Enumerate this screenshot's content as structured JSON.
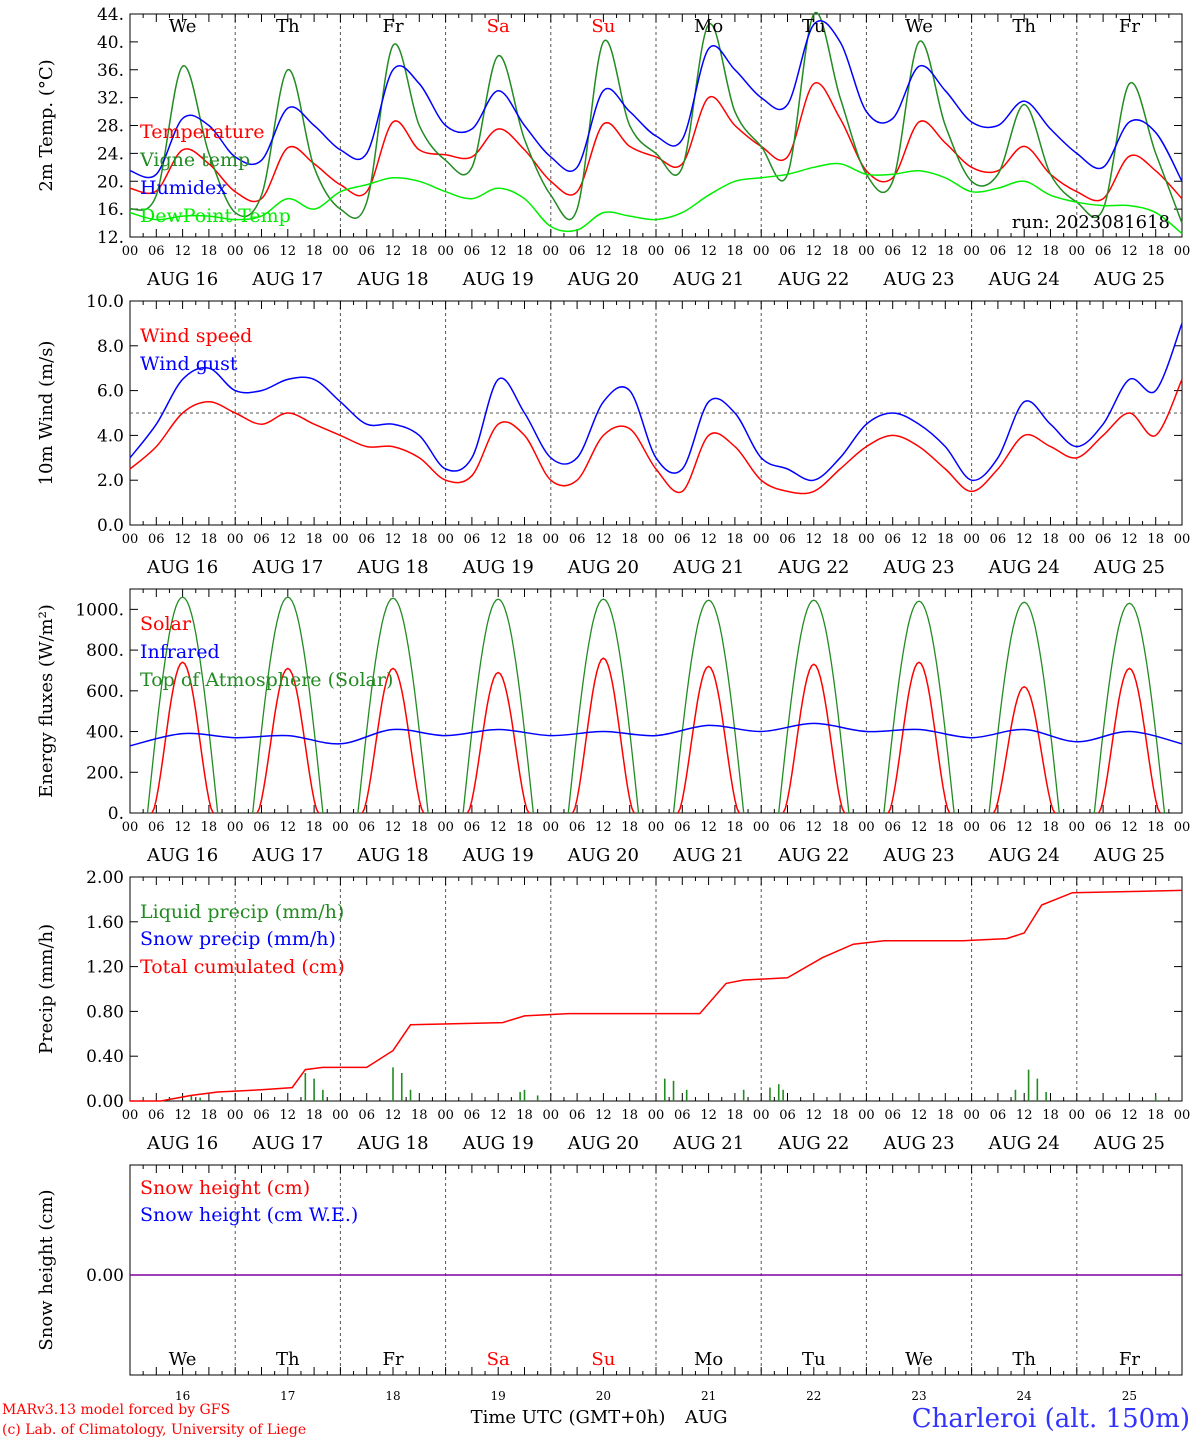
{
  "chart_data": [
    {
      "type": "line",
      "ylabel": "2m Temp. (°C)",
      "ylim": [
        12,
        44
      ],
      "yticks": [
        12,
        16,
        20,
        24,
        28,
        32,
        36,
        40,
        44
      ],
      "ytick_labels": [
        "12.",
        "16.",
        "20.",
        "24.",
        "28.",
        "32.",
        "36.",
        "40.",
        "44."
      ],
      "annotation": "run: 2023081618",
      "weekday_labels": [
        {
          "text": "We",
          "color": "#000000"
        },
        {
          "text": "Th",
          "color": "#000000"
        },
        {
          "text": "Fr",
          "color": "#000000"
        },
        {
          "text": "Sa",
          "color": "#ff0000"
        },
        {
          "text": "Su",
          "color": "#ff0000"
        },
        {
          "text": "Mo",
          "color": "#000000"
        },
        {
          "text": "Tu",
          "color": "#000000"
        },
        {
          "text": "We",
          "color": "#000000"
        },
        {
          "text": "Th",
          "color": "#000000"
        },
        {
          "text": "Fr",
          "color": "#000000"
        }
      ],
      "x_hours": [
        0,
        6,
        12,
        18,
        24,
        30,
        36,
        42,
        48,
        54,
        60,
        66,
        72,
        78,
        84,
        90,
        96,
        102,
        108,
        114,
        120,
        126,
        132,
        138,
        144,
        150,
        156,
        162,
        168,
        174,
        180,
        186,
        192,
        198,
        204,
        210,
        216,
        222,
        228,
        234,
        240
      ],
      "series": [
        {
          "name": "Temperature",
          "color": "#ff0000",
          "values": [
            19,
            18.6,
            24.5,
            22.5,
            18.5,
            17.5,
            24.8,
            22.5,
            19.5,
            18.5,
            28.5,
            24.5,
            23.8,
            23.5,
            27.5,
            24.5,
            20,
            18.5,
            28.2,
            25,
            23.5,
            22.5,
            32,
            28,
            25,
            23.5,
            34,
            29,
            21.5,
            20.5,
            28.5,
            25.5,
            22,
            21.5,
            25,
            21,
            18.5,
            17.5,
            23.6,
            21.5,
            17.5
          ]
        },
        {
          "name": "Vigne temp",
          "color": "#228b22",
          "values": [
            16,
            18,
            36.5,
            24,
            15.5,
            18,
            36,
            22,
            16,
            17,
            39.5,
            28,
            23,
            22,
            38,
            26,
            18,
            16,
            40,
            28,
            24,
            22,
            42.5,
            30,
            25,
            21,
            44,
            32,
            21,
            20,
            40,
            28,
            20,
            21,
            31,
            21,
            17,
            16,
            34,
            24,
            14
          ]
        },
        {
          "name": "Humidex",
          "color": "#0000ff",
          "values": [
            21.5,
            21,
            29,
            28,
            23.5,
            23,
            30.5,
            28,
            24.5,
            24,
            36,
            34,
            28,
            27.5,
            33,
            28,
            23.5,
            22,
            33,
            30,
            26.5,
            26,
            39,
            36,
            32,
            31,
            42.5,
            40,
            30,
            29,
            36.5,
            33,
            28.5,
            28,
            31.5,
            27.5,
            24,
            22,
            28.5,
            27,
            20
          ]
        },
        {
          "name": "DewPoint Temp",
          "color": "#00ee00",
          "values": [
            15.5,
            14.5,
            15,
            15,
            14.5,
            15,
            17.5,
            16,
            18.5,
            19.5,
            20.5,
            20,
            18.5,
            17.5,
            19,
            17.5,
            13.5,
            13,
            15.5,
            15,
            14.5,
            15.5,
            18,
            20,
            20.5,
            21,
            22,
            22.5,
            21,
            21,
            21.5,
            20.5,
            18.5,
            19,
            20,
            18,
            17,
            16.5,
            16.5,
            15.5,
            12.5
          ]
        }
      ]
    },
    {
      "type": "line",
      "ylabel": "10m Wind (m/s)",
      "ylim": [
        0,
        10
      ],
      "yticks": [
        0,
        2,
        4,
        6,
        8,
        10
      ],
      "ytick_labels": [
        "0.0",
        "2.0",
        "4.0",
        "6.0",
        "8.0",
        "10.0"
      ],
      "reference_line": 5,
      "x_hours": [
        0,
        6,
        12,
        18,
        24,
        30,
        36,
        42,
        48,
        54,
        60,
        66,
        72,
        78,
        84,
        90,
        96,
        102,
        108,
        114,
        120,
        126,
        132,
        138,
        144,
        150,
        156,
        162,
        168,
        174,
        180,
        186,
        192,
        198,
        204,
        210,
        216,
        222,
        228,
        234,
        240
      ],
      "series": [
        {
          "name": "Wind speed",
          "color": "#ff0000",
          "values": [
            2.5,
            3.5,
            5,
            5.5,
            5,
            4.5,
            5,
            4.5,
            4,
            3.5,
            3.5,
            3,
            2,
            2.2,
            4.5,
            4,
            2,
            2,
            4,
            4.3,
            2.5,
            1.5,
            4,
            3.5,
            2,
            1.5,
            1.5,
            2.5,
            3.5,
            4,
            3.5,
            2.5,
            1.5,
            2.5,
            4,
            3.5,
            3,
            4,
            5,
            4,
            6.5
          ]
        },
        {
          "name": "Wind gust",
          "color": "#0000ff",
          "values": [
            3,
            4.5,
            6.5,
            7,
            6,
            6,
            6.5,
            6.5,
            5.5,
            4.5,
            4.5,
            4,
            2.5,
            3,
            6.5,
            5,
            3,
            3,
            5.5,
            6,
            3,
            2.5,
            5.5,
            5,
            3,
            2.5,
            2,
            3,
            4.5,
            5,
            4.5,
            3.5,
            2,
            3,
            5.5,
            4.5,
            3.5,
            4.5,
            6.5,
            6,
            9
          ]
        }
      ]
    },
    {
      "type": "line",
      "ylabel": "Energy fluxes (W/m²)",
      "ylim": [
        0,
        1100
      ],
      "yticks": [
        0,
        200,
        400,
        600,
        800,
        1000
      ],
      "ytick_labels": [
        "0.",
        "200.",
        "400.",
        "600.",
        "800.",
        "1000."
      ],
      "series": [
        {
          "name": "Solar",
          "color": "#ff0000",
          "daily_peak": [
            740,
            710,
            710,
            690,
            760,
            720,
            730,
            740,
            620,
            710
          ]
        },
        {
          "name": "Infrared",
          "color": "#0000ff",
          "x_hours": [
            0,
            12,
            24,
            36,
            48,
            60,
            72,
            84,
            96,
            108,
            120,
            132,
            144,
            156,
            168,
            180,
            192,
            204,
            216,
            228,
            240
          ],
          "values": [
            330,
            390,
            370,
            380,
            340,
            410,
            380,
            410,
            380,
            400,
            380,
            430,
            400,
            440,
            400,
            410,
            370,
            410,
            350,
            400,
            340
          ]
        },
        {
          "name": "Top of Atmosphere (Solar)",
          "color": "#228b22",
          "daily_peak": [
            1060,
            1060,
            1055,
            1050,
            1050,
            1045,
            1045,
            1040,
            1035,
            1030
          ]
        }
      ]
    },
    {
      "type": "line",
      "ylabel": "Precip (mm/h)",
      "ylim": [
        0,
        2
      ],
      "yticks": [
        0,
        0.4,
        0.8,
        1.2,
        1.6,
        2.0
      ],
      "ytick_labels": [
        "0.00",
        "0.40",
        "0.80",
        "1.20",
        "1.60",
        "2.00"
      ],
      "series": [
        {
          "name": "Liquid precip (mm/h)",
          "color": "#228b22",
          "x_hours": [
            9,
            14,
            16,
            40,
            42,
            44,
            60,
            62,
            64,
            89,
            90,
            93,
            122,
            124,
            127,
            140,
            146,
            148,
            149,
            202,
            205,
            207,
            209,
            234
          ],
          "values": [
            0.03,
            0.05,
            0.03,
            0.25,
            0.2,
            0.1,
            0.3,
            0.25,
            0.1,
            0.08,
            0.1,
            0.05,
            0.2,
            0.18,
            0.1,
            0.1,
            0.12,
            0.15,
            0.1,
            0.1,
            0.28,
            0.2,
            0.08,
            0.04
          ]
        },
        {
          "name": "Snow precip (mm/h)",
          "color": "#0000ff",
          "values": []
        },
        {
          "name": "Total cumulated (cm)",
          "color": "#ff0000",
          "x_hours": [
            0,
            7,
            14,
            20,
            30,
            37,
            40,
            44,
            54,
            60,
            64,
            85,
            90,
            100,
            120,
            130,
            136,
            140,
            150,
            158,
            165,
            172,
            190,
            200,
            204,
            208,
            215,
            240
          ],
          "values": [
            0,
            0,
            0.05,
            0.08,
            0.1,
            0.12,
            0.28,
            0.3,
            0.3,
            0.45,
            0.68,
            0.7,
            0.76,
            0.78,
            0.78,
            0.78,
            1.05,
            1.08,
            1.1,
            1.28,
            1.4,
            1.43,
            1.43,
            1.45,
            1.5,
            1.75,
            1.86,
            1.88
          ]
        }
      ]
    },
    {
      "type": "line",
      "ylabel": "Snow height (cm)",
      "ytick_labels": [
        "0.00"
      ],
      "series": [
        {
          "name": "Snow height (cm)",
          "color": "#ff0000",
          "values": [
            0,
            0
          ]
        },
        {
          "name": "Snow height (cm W.E.)",
          "color": "#0000ff",
          "values": [
            0,
            0
          ]
        }
      ],
      "weekday_labels": [
        {
          "text": "We",
          "color": "#000000"
        },
        {
          "text": "Th",
          "color": "#000000"
        },
        {
          "text": "Fr",
          "color": "#000000"
        },
        {
          "text": "Sa",
          "color": "#ff0000"
        },
        {
          "text": "Su",
          "color": "#ff0000"
        },
        {
          "text": "Mo",
          "color": "#000000"
        },
        {
          "text": "Tu",
          "color": "#000000"
        },
        {
          "text": "We",
          "color": "#000000"
        },
        {
          "text": "Th",
          "color": "#000000"
        },
        {
          "text": "Fr",
          "color": "#000000"
        }
      ],
      "day_numbers": [
        "16",
        "17",
        "18",
        "19",
        "20",
        "21",
        "22",
        "23",
        "24",
        "25"
      ]
    }
  ],
  "hour_labels": [
    "00",
    "06",
    "12",
    "18"
  ],
  "end_hour_label": "00",
  "date_labels": [
    "AUG 16",
    "AUG 17",
    "AUG 18",
    "AUG 19",
    "AUG 20",
    "AUG 21",
    "AUG 22",
    "AUG 23",
    "AUG 24",
    "AUG 25"
  ],
  "footer": {
    "credit_line1": "MARv3.13 model forced by GFS",
    "credit_line2": "(c) Lab. of Climatology, University of Liege",
    "xlabel": "Time UTC (GMT+0h)",
    "month": "AUG",
    "station": "Charleroi (alt. 150m)"
  },
  "colors": {
    "red": "#ff0000",
    "green": "#228b22",
    "blue": "#0000ff",
    "lime": "#00ee00",
    "purple": "#8000a0"
  }
}
